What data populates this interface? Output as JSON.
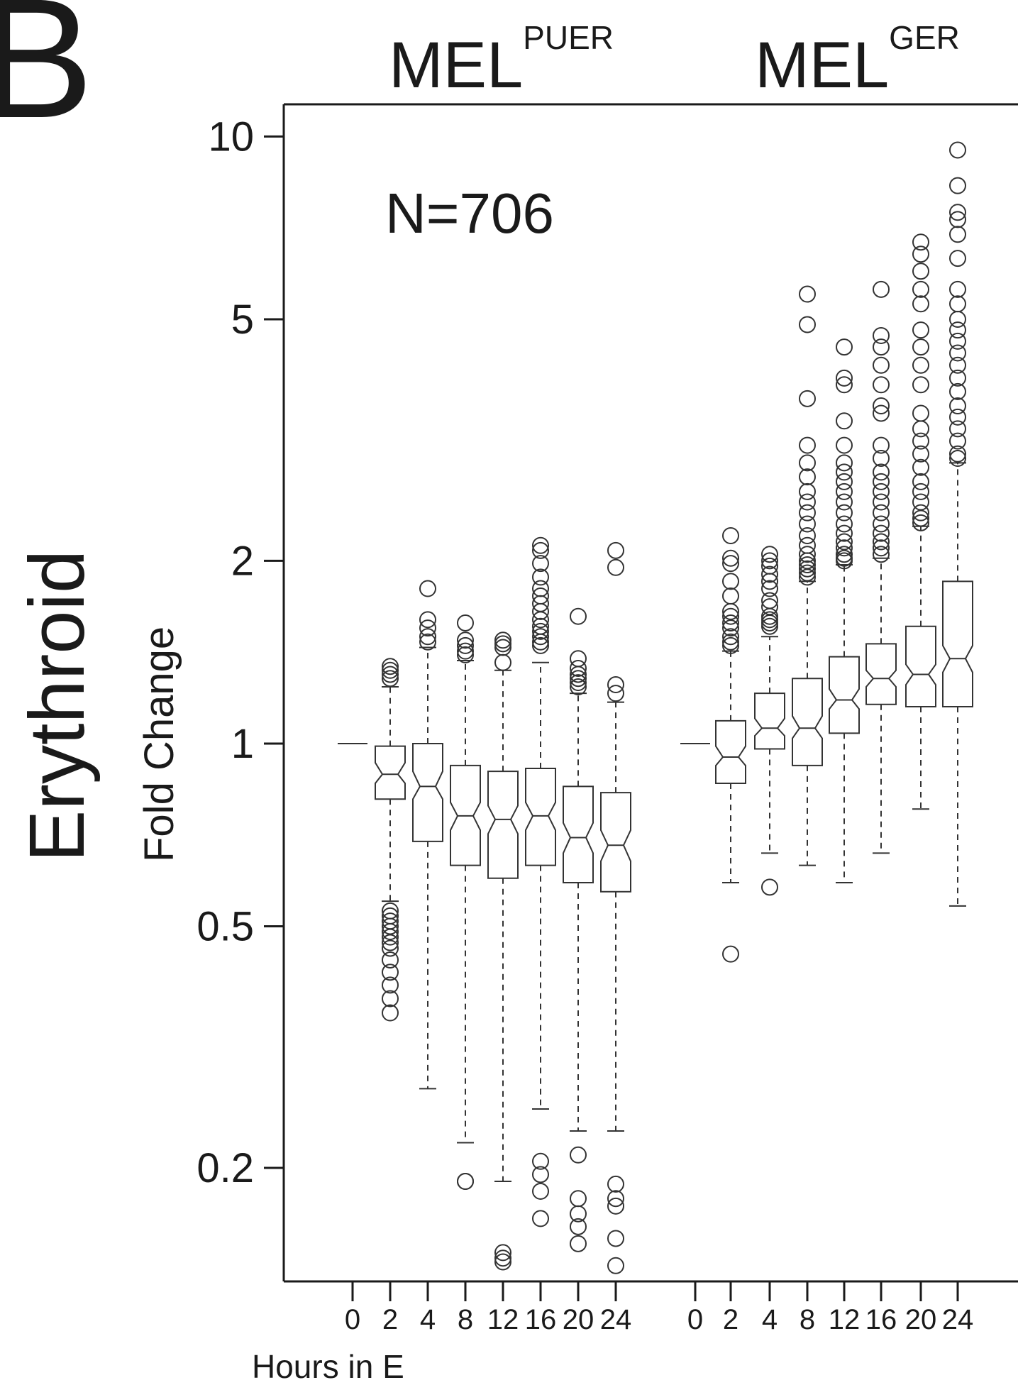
{
  "figure": {
    "panel_letter": "B",
    "n_label": "N=706",
    "ylabel_main": "Erythroid",
    "ylabel_sub": "Fold Change",
    "xlabel": "Hours in E"
  },
  "chart_data": {
    "type": "boxplot",
    "y_scale": "log",
    "ylim": [
      0.13,
      11.3
    ],
    "y_ticks": [
      {
        "value": 10,
        "label": "10"
      },
      {
        "value": 5,
        "label": "5"
      },
      {
        "value": 2,
        "label": "2"
      },
      {
        "value": 1,
        "label": "1"
      },
      {
        "value": 0.5,
        "label": "0.5"
      },
      {
        "value": 0.2,
        "label": "0.2"
      }
    ],
    "categories": [
      "0",
      "2",
      "4",
      "8",
      "12",
      "16",
      "20",
      "24"
    ],
    "groups": [
      {
        "base": "MEL",
        "sup": "PUER",
        "boxes": [
          {
            "x": "0",
            "q1": 1.0,
            "median": 1.0,
            "q3": 1.0,
            "wlo": 1.0,
            "whi": 1.0,
            "notch_lo": 1.0,
            "notch_hi": 1.0,
            "outliers": []
          },
          {
            "x": "2",
            "q1": 0.81,
            "median": 0.89,
            "q3": 0.99,
            "wlo": 0.55,
            "whi": 1.24,
            "notch_lo": 0.86,
            "notch_hi": 0.93,
            "outliers": [
              1.34,
              1.32,
              1.3,
              1.28,
              0.53,
              0.52,
              0.51,
              0.5,
              0.49,
              0.48,
              0.47,
              0.46,
              0.44,
              0.42,
              0.4,
              0.38,
              0.36
            ]
          },
          {
            "x": "4",
            "q1": 0.69,
            "median": 0.85,
            "q3": 1.0,
            "wlo": 0.27,
            "whi": 1.44,
            "notch_lo": 0.81,
            "notch_hi": 0.9,
            "outliers": [
              1.8,
              1.6,
              1.55,
              1.5,
              1.47
            ]
          },
          {
            "x": "8",
            "q1": 0.63,
            "median": 0.76,
            "q3": 0.92,
            "wlo": 0.22,
            "whi": 1.37,
            "notch_lo": 0.72,
            "notch_hi": 0.8,
            "outliers": [
              1.58,
              1.48,
              1.45,
              1.42,
              1.4,
              0.19,
              0.19
            ]
          },
          {
            "x": "12",
            "q1": 0.6,
            "median": 0.75,
            "q3": 0.9,
            "wlo": 0.19,
            "whi": 1.32,
            "notch_lo": 0.71,
            "notch_hi": 0.79,
            "outliers": [
              1.48,
              1.46,
              1.44,
              1.36,
              0.145,
              0.142,
              0.14
            ]
          },
          {
            "x": "16",
            "q1": 0.63,
            "median": 0.76,
            "q3": 0.91,
            "wlo": 0.25,
            "whi": 1.36,
            "notch_lo": 0.72,
            "notch_hi": 0.8,
            "outliers": [
              2.12,
              2.08,
              1.98,
              1.88,
              1.8,
              1.75,
              1.7,
              1.65,
              1.6,
              1.56,
              1.53,
              1.5,
              1.47,
              1.45,
              0.205,
              0.195,
              0.183,
              0.165
            ]
          },
          {
            "x": "20",
            "q1": 0.59,
            "median": 0.7,
            "q3": 0.85,
            "wlo": 0.23,
            "whi": 1.21,
            "notch_lo": 0.66,
            "notch_hi": 0.74,
            "outliers": [
              1.62,
              1.38,
              1.33,
              1.3,
              1.28,
              1.26,
              1.24,
              0.21,
              0.178,
              0.168,
              0.16,
              0.15
            ]
          },
          {
            "x": "24",
            "q1": 0.57,
            "median": 0.68,
            "q3": 0.83,
            "wlo": 0.23,
            "whi": 1.17,
            "notch_lo": 0.64,
            "notch_hi": 0.72,
            "outliers": [
              2.08,
              1.95,
              1.25,
              1.21,
              0.188,
              0.178,
              0.173,
              0.153,
              0.138
            ]
          }
        ]
      },
      {
        "base": "MEL",
        "sup": "GER",
        "boxes": [
          {
            "x": "0",
            "q1": 1.0,
            "median": 1.0,
            "q3": 1.0,
            "wlo": 1.0,
            "whi": 1.0,
            "notch_lo": 1.0,
            "notch_hi": 1.0,
            "outliers": []
          },
          {
            "x": "2",
            "q1": 0.86,
            "median": 0.95,
            "q3": 1.09,
            "wlo": 0.59,
            "whi": 1.42,
            "notch_lo": 0.92,
            "notch_hi": 0.99,
            "outliers": [
              2.2,
              2.02,
              1.98,
              1.85,
              1.75,
              1.65,
              1.62,
              1.58,
              1.55,
              1.5,
              1.47,
              1.45,
              0.45
            ]
          },
          {
            "x": "4",
            "q1": 0.98,
            "median": 1.06,
            "q3": 1.21,
            "wlo": 0.66,
            "whi": 1.5,
            "notch_lo": 1.03,
            "notch_hi": 1.1,
            "outliers": [
              2.05,
              2.0,
              1.96,
              1.9,
              1.85,
              1.8,
              1.72,
              1.68,
              1.62,
              1.6,
              1.58,
              1.56,
              0.58
            ]
          },
          {
            "x": "8",
            "q1": 0.92,
            "median": 1.06,
            "q3": 1.28,
            "wlo": 0.63,
            "whi": 1.85,
            "notch_lo": 1.02,
            "notch_hi": 1.11,
            "outliers": [
              5.5,
              4.9,
              3.7,
              3.1,
              2.9,
              2.75,
              2.6,
              2.5,
              2.4,
              2.3,
              2.2,
              2.12,
              2.05,
              2.0,
              1.97,
              1.94,
              1.91,
              1.88
            ]
          },
          {
            "x": "12",
            "q1": 1.04,
            "median": 1.18,
            "q3": 1.39,
            "wlo": 0.59,
            "whi": 1.97,
            "notch_lo": 1.14,
            "notch_hi": 1.23,
            "outliers": [
              4.5,
              4.0,
              3.9,
              3.4,
              3.1,
              2.9,
              2.8,
              2.7,
              2.6,
              2.5,
              2.4,
              2.3,
              2.22,
              2.15,
              2.1,
              2.05,
              2.02,
              2.0
            ]
          },
          {
            "x": "16",
            "q1": 1.16,
            "median": 1.28,
            "q3": 1.46,
            "wlo": 0.66,
            "whi": 2.02,
            "notch_lo": 1.24,
            "notch_hi": 1.32,
            "outliers": [
              5.6,
              4.7,
              4.5,
              4.2,
              3.9,
              3.6,
              3.5,
              3.1,
              2.95,
              2.8,
              2.7,
              2.6,
              2.5,
              2.4,
              2.3,
              2.22,
              2.15,
              2.1,
              2.05
            ]
          },
          {
            "x": "20",
            "q1": 1.15,
            "median": 1.3,
            "q3": 1.56,
            "wlo": 0.78,
            "whi": 2.28,
            "notch_lo": 1.25,
            "notch_hi": 1.35,
            "outliers": [
              6.7,
              6.4,
              6.0,
              5.6,
              5.3,
              4.8,
              4.5,
              4.2,
              3.9,
              3.5,
              3.3,
              3.15,
              3.0,
              2.85,
              2.7,
              2.6,
              2.5,
              2.4,
              2.35,
              2.31
            ]
          },
          {
            "x": "24",
            "q1": 1.15,
            "median": 1.38,
            "q3": 1.85,
            "wlo": 0.54,
            "whi": 2.9,
            "notch_lo": 1.31,
            "notch_hi": 1.45,
            "outliers": [
              9.5,
              8.3,
              7.5,
              7.3,
              6.9,
              6.3,
              5.6,
              5.3,
              5.0,
              4.8,
              4.6,
              4.4,
              4.2,
              4.0,
              3.8,
              3.6,
              3.45,
              3.3,
              3.15,
              3.0,
              2.95
            ]
          }
        ]
      }
    ]
  }
}
